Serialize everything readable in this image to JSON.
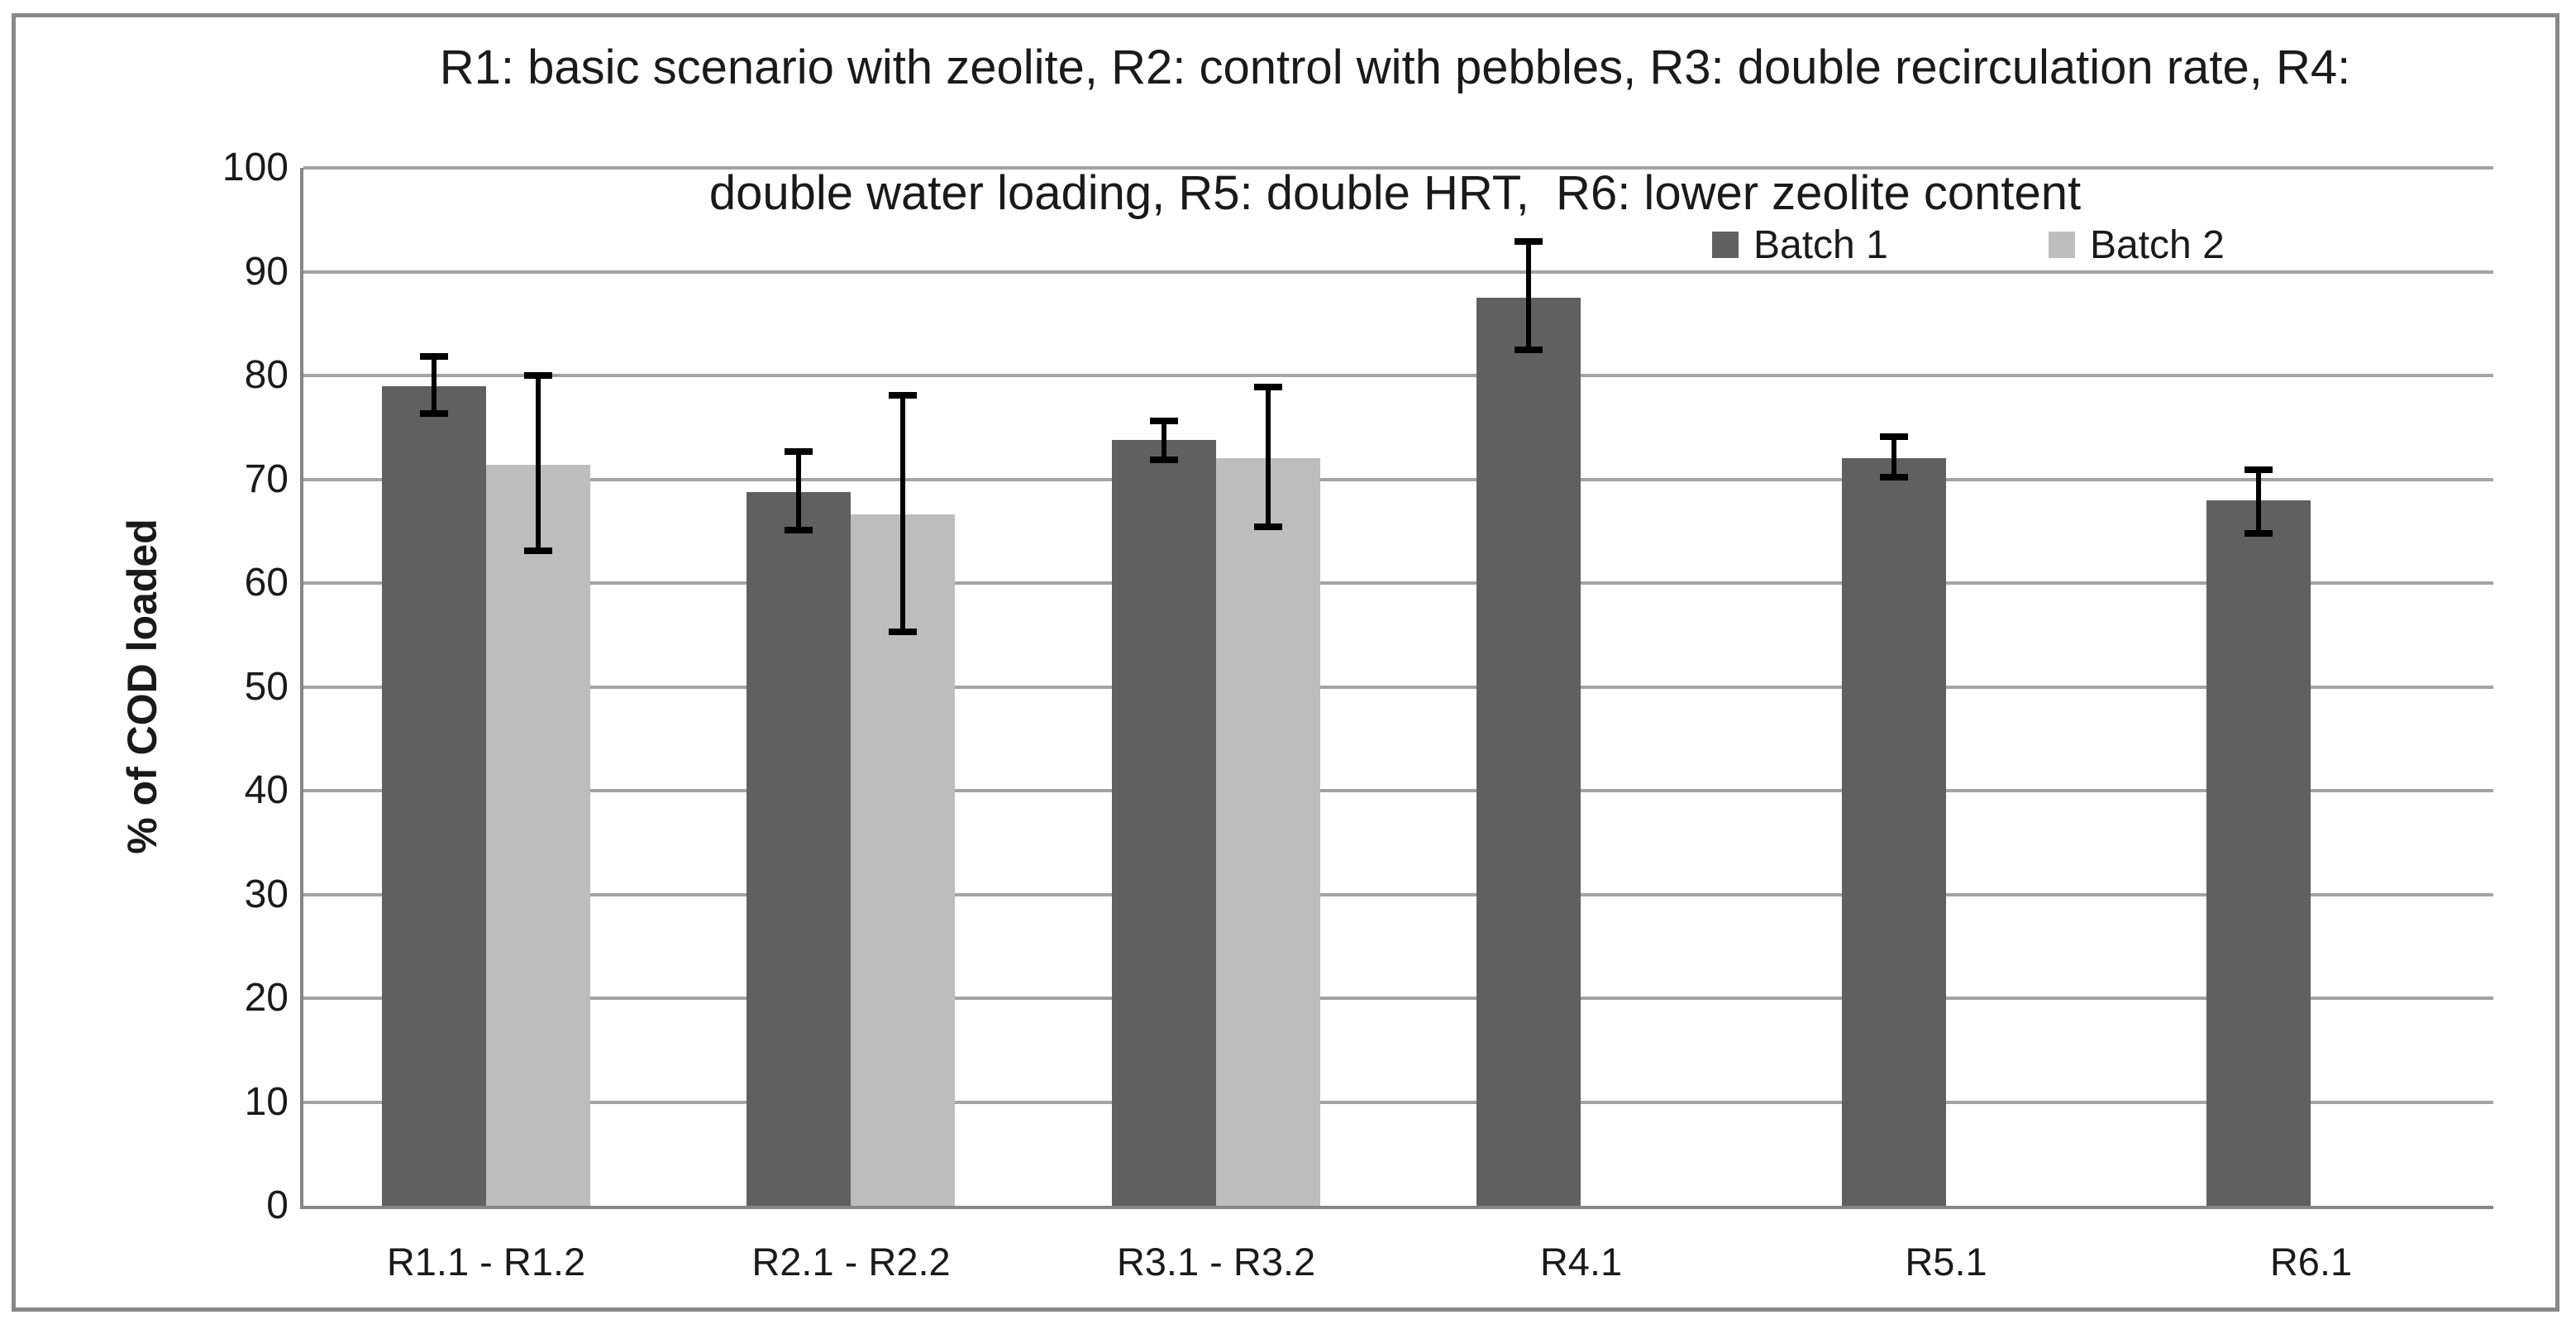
{
  "title": {
    "line1": "R1: basic scenario with zeolite, R2: control with pebbles, R3: double recirculation rate, R4:",
    "line2": "double water loading, R5: double HRT,  R6: lower zeolite content"
  },
  "chart_data": {
    "type": "bar",
    "title": "R1: basic scenario with zeolite, R2: control with pebbles, R3: double recirculation rate, R4: double water loading, R5: double HRT, R6: lower zeolite content",
    "ylabel": "% of COD loaded",
    "xlabel": "",
    "ylim": [
      0,
      100
    ],
    "ytick_step": 10,
    "yticks": [
      0,
      10,
      20,
      30,
      40,
      50,
      60,
      70,
      80,
      90,
      100
    ],
    "grid": true,
    "legend_position": "top-right",
    "categories": [
      "R1.1 - R1.2",
      "R2.1 - R2.2",
      "R3.1 - R3.2",
      "R4.1",
      "R5.1",
      "R6.1"
    ],
    "series": [
      {
        "name": "Batch 1",
        "color": "#606060",
        "values": [
          79.0,
          68.8,
          73.8,
          87.5,
          72.0,
          68.0
        ],
        "error_high": [
          81.8,
          72.7,
          75.6,
          92.9,
          74.1,
          70.9
        ],
        "error_low": [
          76.3,
          65.1,
          71.9,
          82.5,
          70.2,
          64.8
        ]
      },
      {
        "name": "Batch 2",
        "color": "#bdbdbd",
        "values": [
          71.4,
          66.6,
          72.0,
          null,
          null,
          null
        ],
        "error_high": [
          80.0,
          78.1,
          78.9,
          null,
          null,
          null
        ],
        "error_low": [
          63.1,
          55.3,
          65.4,
          null,
          null,
          null
        ]
      }
    ],
    "error_bar_color": "#000000"
  }
}
